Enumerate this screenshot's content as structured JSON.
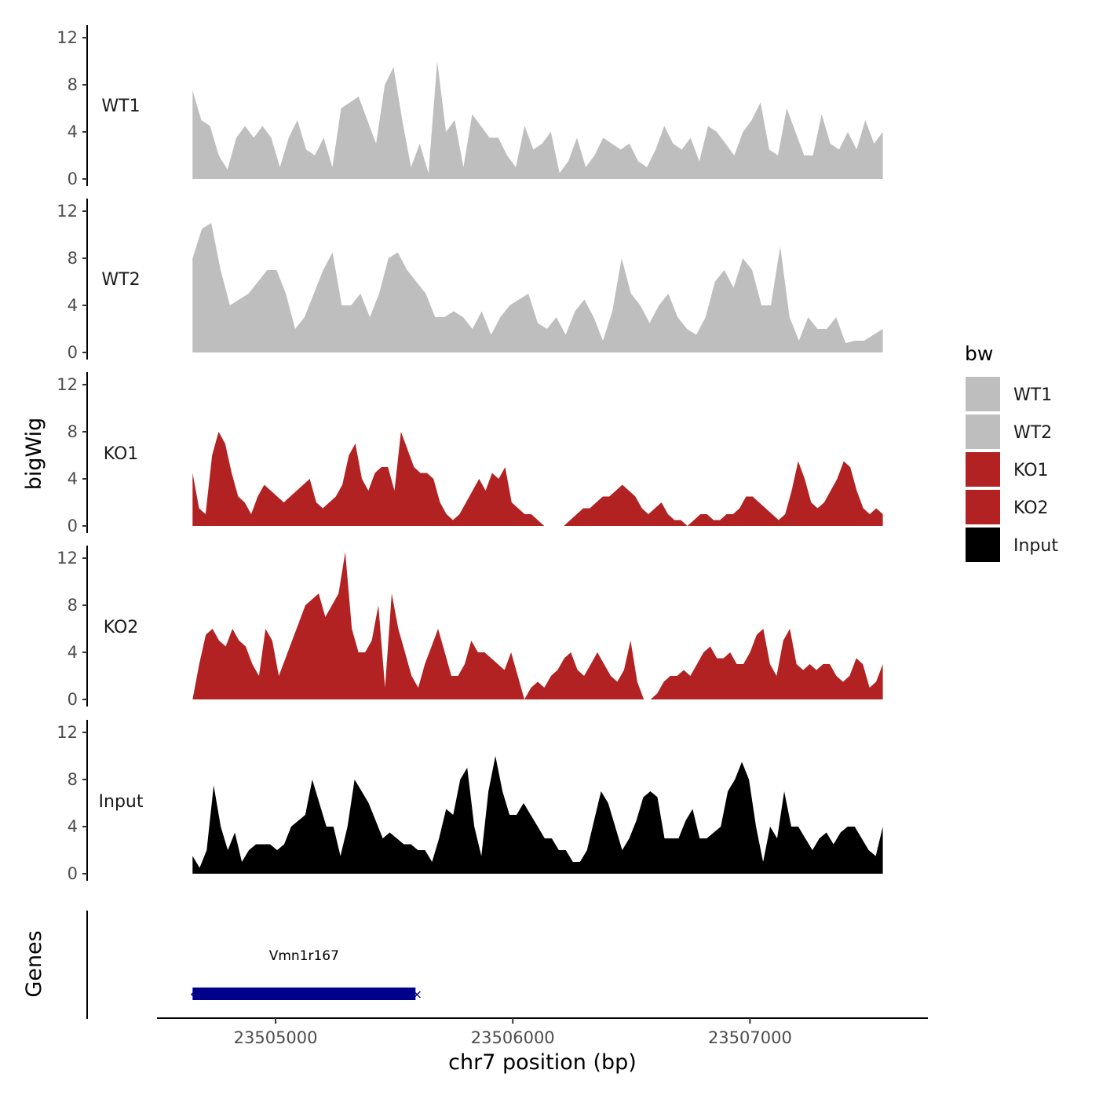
{
  "chart_data": {
    "type": "area",
    "title": "",
    "xlabel": "chr7 position (bp)",
    "ylabel": "bigWig",
    "genes_label": "Genes",
    "xlim": [
      23504500,
      23507750
    ],
    "x_range": [
      23504650,
      23507560
    ],
    "xticks": [
      23505000,
      23506000,
      23507000
    ],
    "xtick_labels": [
      "23505000",
      "23506000",
      "23507000"
    ],
    "ylim": [
      0,
      13
    ],
    "yticks": [
      0,
      4,
      8,
      12
    ],
    "ytick_labels": [
      "0",
      "4",
      "8",
      "12"
    ],
    "grid": false,
    "legend": {
      "title": "bw",
      "position": "right",
      "entries": [
        {
          "name": "WT1",
          "color": "#bebebe"
        },
        {
          "name": "WT2",
          "color": "#bebebe"
        },
        {
          "name": "KO1",
          "color": "#b22222"
        },
        {
          "name": "KO2",
          "color": "#b22222"
        },
        {
          "name": "Input",
          "color": "#000000"
        }
      ]
    },
    "series": [
      {
        "name": "WT1",
        "color": "#bebebe",
        "values": [
          7.5,
          5,
          4.5,
          2,
          0.8,
          3.5,
          4.5,
          3.5,
          4.5,
          3.5,
          1,
          3.5,
          5,
          2.5,
          2,
          3.5,
          1,
          6,
          6.5,
          7,
          5,
          3,
          8,
          9.5,
          5,
          1,
          3,
          0.5,
          10,
          4,
          5,
          1,
          5.5,
          4.5,
          3.5,
          3.5,
          2,
          1,
          4.5,
          2.5,
          3,
          4,
          0.5,
          1.5,
          3.5,
          1,
          2,
          3.5,
          3,
          2.5,
          3,
          1.5,
          1,
          2.5,
          4.5,
          3,
          2.5,
          3.5,
          1.5,
          4.5,
          4,
          3,
          2,
          4,
          5,
          6.5,
          2.5,
          2,
          6,
          4,
          2,
          2,
          5.5,
          3,
          2.5,
          4,
          2.5,
          5,
          3,
          4
        ]
      },
      {
        "name": "WT2",
        "color": "#bebebe",
        "values": [
          8,
          10.5,
          11,
          7,
          4,
          4.5,
          5,
          6,
          7,
          7,
          5,
          2,
          3,
          5,
          7,
          8.5,
          4,
          4,
          5,
          3,
          5,
          8,
          8.5,
          7,
          6,
          5,
          3,
          3,
          3.5,
          3,
          2,
          3.5,
          1.5,
          3,
          4,
          4.5,
          5,
          2.5,
          2,
          3,
          1.5,
          3.5,
          4.5,
          3,
          1,
          3.5,
          8,
          5,
          4,
          2.5,
          4,
          5,
          3,
          2,
          1.5,
          3,
          6,
          7,
          5.5,
          8,
          7,
          4,
          4,
          9,
          3,
          1,
          3,
          2,
          2,
          3,
          0.8,
          1,
          1,
          1.5,
          2
        ]
      },
      {
        "name": "KO1",
        "color": "#b22222",
        "values": [
          4.5,
          1.5,
          1,
          6,
          8,
          7,
          4.5,
          2.5,
          2,
          1,
          2.5,
          3.5,
          3,
          2.5,
          2,
          2.5,
          3,
          3.5,
          4,
          2,
          1.5,
          2,
          2.5,
          3.5,
          6,
          7,
          4,
          3,
          4.5,
          5,
          5,
          3,
          8,
          6.5,
          5,
          4.5,
          4.5,
          4,
          2,
          1,
          0.5,
          1,
          2,
          3,
          4,
          3,
          4.5,
          4,
          5,
          2,
          1.5,
          1,
          1,
          0.5,
          0,
          0,
          0,
          0,
          0.5,
          1,
          1.5,
          1.5,
          2,
          2.5,
          2.5,
          3,
          3.5,
          3,
          2.5,
          1.5,
          1,
          1.5,
          2,
          1,
          0.5,
          0.5,
          0,
          0.5,
          1,
          1,
          0.5,
          0.5,
          1,
          1,
          1.5,
          2.5,
          2.5,
          2,
          1.5,
          1,
          0.5,
          1,
          3,
          5.5,
          4,
          2,
          1.5,
          2,
          3,
          4,
          5.5,
          5,
          3,
          1.5,
          1,
          1.5,
          1
        ]
      },
      {
        "name": "KO2",
        "color": "#b22222",
        "values": [
          0,
          3,
          5.5,
          6,
          5,
          4.5,
          6,
          5,
          4.5,
          3,
          2,
          6,
          5,
          2,
          3.5,
          5,
          6.5,
          8,
          8.5,
          9,
          7,
          8,
          9,
          12.5,
          6,
          4,
          4,
          5,
          8,
          1,
          9,
          6,
          4,
          2,
          1,
          3,
          4.5,
          6,
          4,
          2,
          2,
          3,
          5,
          4,
          4,
          3.5,
          3,
          2.5,
          4,
          2,
          0,
          1,
          1.5,
          1,
          2,
          2.5,
          3.5,
          4,
          2.5,
          2,
          3,
          4,
          3,
          2,
          1.5,
          2.5,
          5,
          1.5,
          0,
          0,
          0.5,
          1.5,
          2,
          2,
          2.5,
          2,
          3,
          4,
          4.5,
          3.5,
          3.5,
          4,
          3,
          3,
          4,
          5.5,
          6,
          3,
          2,
          5,
          6,
          3,
          2.5,
          3,
          2.5,
          3,
          3,
          2,
          1.5,
          2,
          3.5,
          3,
          1,
          1.5,
          3
        ]
      },
      {
        "name": "Input",
        "color": "#000000",
        "values": [
          1.5,
          0.5,
          2,
          7.5,
          4,
          2,
          3.5,
          1,
          2,
          2.5,
          2.5,
          2.5,
          2,
          2.5,
          4,
          4.5,
          5,
          8,
          6,
          4,
          4,
          1.5,
          4,
          8,
          7,
          6,
          4.5,
          3,
          3.5,
          3,
          2.5,
          2.5,
          2,
          2,
          1,
          3,
          5.5,
          5,
          8,
          9,
          4,
          1.5,
          7,
          10,
          7,
          5,
          5,
          6,
          5,
          4,
          3,
          3,
          2,
          2,
          1,
          1,
          2,
          4.5,
          7,
          6,
          4,
          2,
          3,
          4.5,
          6.5,
          7,
          6.5,
          3,
          3,
          3,
          4.5,
          5.5,
          3,
          3,
          3.5,
          4,
          7,
          8,
          9.5,
          8,
          4,
          1,
          4,
          3,
          7,
          4,
          4,
          3,
          2,
          3,
          3.5,
          2.5,
          3.5,
          4,
          4,
          3,
          2,
          1.5,
          4
        ]
      }
    ],
    "genes": [
      {
        "name": "Vmn1r167",
        "start": 23504650,
        "end": 23505590,
        "strand": "-",
        "color": "#00008b"
      }
    ]
  }
}
